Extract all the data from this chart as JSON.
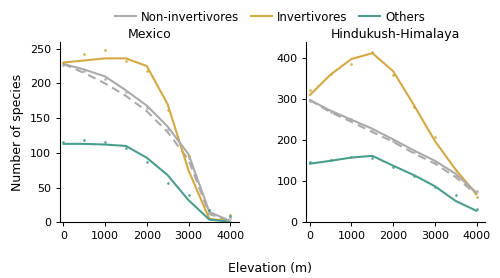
{
  "legend_labels": [
    "Non-invertivores",
    "Invertivores",
    "Others"
  ],
  "colors": {
    "non_inv": "#aaaaaa",
    "inv": "#d4a843",
    "others": "#4a9e8e"
  },
  "mexico": {
    "title": "Mexico",
    "ylim": [
      0,
      260
    ],
    "yticks": [
      0,
      50,
      100,
      150,
      200,
      250
    ],
    "elevation": [
      0,
      500,
      1000,
      1500,
      2000,
      2500,
      3000,
      3500,
      4000
    ],
    "inv_line": [
      230,
      233,
      236,
      236,
      225,
      170,
      75,
      5,
      2
    ],
    "non_inv_line": [
      228,
      220,
      210,
      190,
      168,
      138,
      98,
      15,
      2
    ],
    "others_line": [
      113,
      113,
      112,
      110,
      93,
      68,
      32,
      4,
      1
    ],
    "non_inv_dashed": [
      228,
      215,
      200,
      182,
      160,
      130,
      90,
      12,
      2
    ],
    "inv_dots": [
      230,
      243,
      248,
      232,
      218,
      162,
      95,
      18,
      10
    ],
    "non_inv_dots": [
      226,
      218,
      207,
      188,
      165,
      135,
      92,
      18,
      6
    ],
    "others_dots": [
      115,
      118,
      116,
      107,
      87,
      57,
      40,
      18,
      9
    ]
  },
  "himalaya": {
    "title": "Hindukush-Himalaya",
    "ylim": [
      0,
      440
    ],
    "yticks": [
      0,
      100,
      200,
      300,
      400
    ],
    "elevation": [
      0,
      500,
      1000,
      1500,
      2000,
      2500,
      3000,
      3500,
      4000
    ],
    "inv_line": [
      310,
      360,
      398,
      412,
      368,
      285,
      198,
      128,
      68
    ],
    "non_inv_line": [
      298,
      272,
      250,
      228,
      202,
      175,
      150,
      118,
      72
    ],
    "others_line": [
      143,
      150,
      158,
      162,
      138,
      115,
      88,
      52,
      28
    ],
    "non_inv_dashed": [
      298,
      268,
      245,
      220,
      196,
      168,
      143,
      110,
      68
    ],
    "inv_dots": [
      322,
      362,
      385,
      415,
      358,
      282,
      208,
      128,
      62
    ],
    "non_inv_dots": [
      296,
      268,
      252,
      222,
      198,
      172,
      148,
      112,
      76
    ],
    "others_dots": [
      147,
      153,
      160,
      158,
      135,
      112,
      86,
      66,
      33
    ]
  },
  "xlabel": "Elevation (m)",
  "ylabel": "Number of species",
  "xticks": [
    0,
    1000,
    2000,
    3000,
    4000
  ],
  "title_fontsize": 9,
  "label_fontsize": 9,
  "tick_fontsize": 8,
  "legend_fontsize": 8.5
}
